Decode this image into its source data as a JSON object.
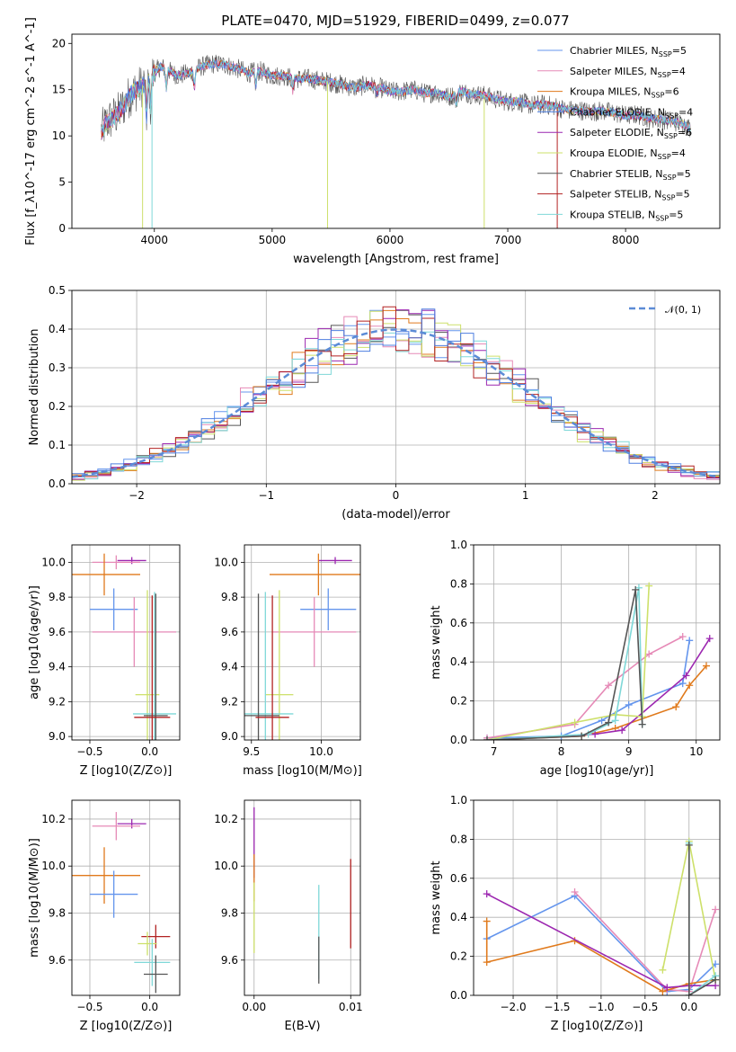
{
  "title": "PLATE=0470, MJD=51929, FIBERID=0499, z=0.077",
  "colors": [
    "#6495ed",
    "#e68ab7",
    "#e07a1c",
    "#4e7fe0",
    "#9c27b0",
    "#cde06a",
    "#555555",
    "#b22222",
    "#7fd8d8"
  ],
  "chart_data": [
    {
      "id": "spectrum",
      "type": "line",
      "xlabel": "wavelength [Angstrom, rest frame]",
      "ylabel": "Flux [f_λ10^-17 erg cm^-2 s^-1 A^-1]",
      "xlim": [
        3300,
        8800
      ],
      "ylim": [
        0,
        21
      ],
      "xticks": [
        4000,
        5000,
        6000,
        7000,
        8000
      ],
      "yticks": [
        0,
        5,
        10,
        15,
        20
      ],
      "grid": false,
      "legend": "top-right",
      "series": [
        {
          "name": "Chabrier MILES, N_SSP=5"
        },
        {
          "name": "Salpeter MILES, N_SSP=4"
        },
        {
          "name": "Kroupa MILES, N_SSP=6"
        },
        {
          "name": "Chabrier ELODIE, N_SSP=4"
        },
        {
          "name": "Salpeter ELODIE, N_SSP=6"
        },
        {
          "name": "Kroupa ELODIE, N_SSP=4"
        },
        {
          "name": "Chabrier STELIB, N_SSP=5"
        },
        {
          "name": "Salpeter STELIB, N_SSP=5"
        },
        {
          "name": "Kroupa STELIB, N_SSP=5"
        }
      ],
      "envelope_x": [
        3550,
        3600,
        3700,
        3750,
        3800,
        3850,
        3900,
        3950,
        4000,
        4050,
        4100,
        4200,
        4300,
        4400,
        4500,
        4600,
        4700,
        4800,
        4900,
        5000,
        5100,
        5200,
        5300,
        5400,
        5500,
        5600,
        5700,
        5800,
        5900,
        6000,
        6100,
        6200,
        6300,
        6400,
        6500,
        6600,
        6700,
        6800,
        6900,
        7000,
        7100,
        7200,
        7300,
        7400,
        7500,
        7600,
        7700,
        7800,
        7900,
        8000,
        8100,
        8200,
        8300,
        8400,
        8500,
        8550
      ],
      "envelope_y": [
        10.5,
        11.5,
        12.5,
        13.5,
        14.5,
        15,
        15.5,
        16,
        16.8,
        17.5,
        17.2,
        16.5,
        16.8,
        17.5,
        17.8,
        17.7,
        17.3,
        16.8,
        17,
        16.5,
        16.5,
        16.2,
        16.2,
        16,
        15.8,
        15.5,
        15.2,
        15.5,
        15.3,
        14.8,
        14.8,
        15,
        14.6,
        14.7,
        14.2,
        14.8,
        14.5,
        14.4,
        14,
        13.7,
        13.7,
        13.3,
        13.4,
        13.2,
        12.8,
        12.8,
        12.6,
        12.7,
        12.5,
        12.2,
        12.3,
        11.9,
        11.8,
        11.6,
        11.2,
        10.8
      ]
    },
    {
      "id": "residuals",
      "type": "line",
      "xlabel": "(data-model)/error",
      "ylabel": "Normed distribution",
      "xlim": [
        -2.5,
        2.5
      ],
      "ylim": [
        0,
        0.5
      ],
      "xticks": [
        -2,
        -1,
        0,
        1,
        2
      ],
      "yticks": [
        0.0,
        0.1,
        0.2,
        0.3,
        0.4,
        0.5
      ],
      "grid": true,
      "legend": "top-right",
      "reference": {
        "name": "𝒩(0, 1)",
        "mean": 0,
        "sigma": 1
      },
      "bin_width": 0.1
    },
    {
      "id": "age-vs-Z",
      "type": "scatter",
      "xlabel": "Z [log10(Z/Z⊙)]",
      "ylabel": "age  [log10(age/yr)]",
      "xlim": [
        -0.65,
        0.25
      ],
      "ylim": [
        8.98,
        10.1
      ],
      "xticks": [
        -0.5,
        0.0
      ],
      "yticks": [
        9.0,
        9.2,
        9.4,
        9.6,
        9.8,
        10.0
      ],
      "grid": true,
      "points": [
        {
          "x": -0.15,
          "y": 10.01,
          "xerr": 0.12,
          "yerr": 0.02,
          "c": 4
        },
        {
          "x": -0.28,
          "y": 10.0,
          "xerr": 0.2,
          "yerr": 0.04,
          "c": 1
        },
        {
          "x": -0.38,
          "y": 9.93,
          "xerr": 0.3,
          "yerr": 0.12,
          "c": 2
        },
        {
          "x": -0.3,
          "y": 9.73,
          "xerr": 0.2,
          "yerr": 0.12,
          "c": 0
        },
        {
          "x": -0.13,
          "y": 9.6,
          "xerr": 0.35,
          "yerr": 0.2,
          "c": 1
        },
        {
          "x": -0.02,
          "y": 9.24,
          "xerr": 0.1,
          "yerr": 0.6,
          "c": 5
        },
        {
          "x": 0.04,
          "y": 9.13,
          "xerr": 0.18,
          "yerr": 0.7,
          "c": 8
        },
        {
          "x": 0.05,
          "y": 9.12,
          "xerr": 0.1,
          "yerr": 0.7,
          "c": 6
        },
        {
          "x": 0.02,
          "y": 9.11,
          "xerr": 0.15,
          "yerr": 0.7,
          "c": 7
        }
      ]
    },
    {
      "id": "age-vs-mass",
      "type": "scatter",
      "xlabel": "mass [log10(M/M⊙)]",
      "ylabel": "",
      "xlim": [
        9.45,
        10.28
      ],
      "ylim": [
        8.98,
        10.1
      ],
      "xticks": [
        9.5,
        10.0
      ],
      "yticks": [
        9.0,
        9.2,
        9.4,
        9.6,
        9.8,
        10.0
      ],
      "grid": true,
      "points": [
        {
          "x": 10.1,
          "y": 10.01,
          "xerr": 0.12,
          "yerr": 0.02,
          "c": 4
        },
        {
          "x": 9.98,
          "y": 9.93,
          "xerr": 0.35,
          "yerr": 0.12,
          "c": 2
        },
        {
          "x": 10.05,
          "y": 9.73,
          "xerr": 0.2,
          "yerr": 0.12,
          "c": 0
        },
        {
          "x": 9.95,
          "y": 9.6,
          "xerr": 0.3,
          "yerr": 0.2,
          "c": 1
        },
        {
          "x": 9.7,
          "y": 9.24,
          "xerr": 0.1,
          "yerr": 0.6,
          "c": 5
        },
        {
          "x": 9.6,
          "y": 9.13,
          "xerr": 0.2,
          "yerr": 0.7,
          "c": 8
        },
        {
          "x": 9.55,
          "y": 9.12,
          "xerr": 0.15,
          "yerr": 0.7,
          "c": 6
        },
        {
          "x": 9.65,
          "y": 9.11,
          "xerr": 0.12,
          "yerr": 0.7,
          "c": 7
        }
      ]
    },
    {
      "id": "weight-vs-age",
      "type": "line",
      "xlabel": "age  [log10(age/yr)]",
      "ylabel": "mass weight",
      "xlim": [
        6.7,
        10.35
      ],
      "ylim": [
        0,
        1.0
      ],
      "xticks": [
        7,
        8,
        9,
        10
      ],
      "yticks": [
        0.0,
        0.2,
        0.4,
        0.6,
        0.8,
        1.0
      ],
      "grid": true,
      "series": [
        {
          "c": 0,
          "x": [
            6.9,
            8.0,
            8.6,
            9.0,
            9.8,
            9.9
          ],
          "y": [
            0.01,
            0.02,
            0.1,
            0.18,
            0.29,
            0.51
          ]
        },
        {
          "c": 1,
          "x": [
            6.9,
            8.2,
            8.7,
            9.3,
            9.8
          ],
          "y": [
            0.01,
            0.08,
            0.28,
            0.44,
            0.53
          ]
        },
        {
          "c": 2,
          "x": [
            6.9,
            8.3,
            8.8,
            9.7,
            9.9,
            10.15
          ],
          "y": [
            0.0,
            0.02,
            0.06,
            0.17,
            0.28,
            0.38
          ]
        },
        {
          "c": 4,
          "x": [
            6.9,
            8.5,
            8.9,
            9.85,
            10.2
          ],
          "y": [
            0.0,
            0.03,
            0.05,
            0.33,
            0.52
          ]
        },
        {
          "c": 5,
          "x": [
            6.9,
            8.2,
            8.8,
            9.2,
            9.3
          ],
          "y": [
            0.0,
            0.09,
            0.13,
            0.12,
            0.79
          ]
        },
        {
          "c": 8,
          "x": [
            6.9,
            8.4,
            8.8,
            9.15,
            9.2
          ],
          "y": [
            0.0,
            0.03,
            0.1,
            0.78,
            0.08
          ]
        },
        {
          "c": 6,
          "x": [
            6.9,
            8.3,
            8.7,
            9.1,
            9.2
          ],
          "y": [
            0.0,
            0.02,
            0.09,
            0.77,
            0.08
          ]
        }
      ]
    },
    {
      "id": "mass-vs-Z",
      "type": "scatter",
      "xlabel": "Z [log10(Z/Z⊙)]",
      "ylabel": "mass [log10(M/M⊙)]",
      "xlim": [
        -0.65,
        0.25
      ],
      "ylim": [
        9.45,
        10.28
      ],
      "xticks": [
        -0.5,
        0.0
      ],
      "yticks": [
        9.6,
        9.8,
        10.0,
        10.2
      ],
      "grid": true,
      "points": [
        {
          "x": -0.15,
          "y": 10.18,
          "xerr": 0.12,
          "yerr": 0.02,
          "c": 4
        },
        {
          "x": -0.28,
          "y": 10.17,
          "xerr": 0.2,
          "yerr": 0.06,
          "c": 1
        },
        {
          "x": -0.38,
          "y": 9.96,
          "xerr": 0.3,
          "yerr": 0.12,
          "c": 2
        },
        {
          "x": -0.3,
          "y": 9.88,
          "xerr": 0.2,
          "yerr": 0.1,
          "c": 0
        },
        {
          "x": 0.05,
          "y": 9.7,
          "xerr": 0.12,
          "yerr": 0.05,
          "c": 7
        },
        {
          "x": -0.02,
          "y": 9.67,
          "xerr": 0.08,
          "yerr": 0.05,
          "c": 5
        },
        {
          "x": 0.02,
          "y": 9.59,
          "xerr": 0.15,
          "yerr": 0.1,
          "c": 8
        },
        {
          "x": 0.05,
          "y": 9.54,
          "xerr": 0.1,
          "yerr": 0.08,
          "c": 6
        }
      ]
    },
    {
      "id": "mass-vs-ebv",
      "type": "scatter",
      "xlabel": "E(B-V)",
      "ylabel": "",
      "xlim": [
        -0.001,
        0.011
      ],
      "ylim": [
        9.45,
        10.28
      ],
      "xticks": [
        0.0,
        0.01
      ],
      "yticks": [
        9.6,
        9.8,
        10.0,
        10.2
      ],
      "grid": true,
      "points": [
        {
          "x": 0.0,
          "y": 10.1,
          "xerr": 0,
          "yerr": 0.15,
          "c": 4
        },
        {
          "x": 0.0,
          "y": 9.95,
          "xerr": 0,
          "yerr": 0.1,
          "c": 2
        },
        {
          "x": 0.0,
          "y": 9.78,
          "xerr": 0,
          "yerr": 0.15,
          "c": 5
        },
        {
          "x": 0.0067,
          "y": 9.72,
          "xerr": 0,
          "yerr": 0.2,
          "c": 8
        },
        {
          "x": 0.0067,
          "y": 9.6,
          "xerr": 0,
          "yerr": 0.1,
          "c": 6
        },
        {
          "x": 0.01,
          "y": 9.84,
          "xerr": 0,
          "yerr": 0.19,
          "c": 7
        }
      ]
    },
    {
      "id": "weight-vs-Z",
      "type": "line",
      "xlabel": "Z [log10(Z/Z⊙)]",
      "ylabel": "mass weight",
      "xlim": [
        -2.45,
        0.35
      ],
      "ylim": [
        0,
        1.0
      ],
      "xticks": [
        -2.0,
        -1.5,
        -1.0,
        -0.5,
        0.0
      ],
      "yticks": [
        0.0,
        0.2,
        0.4,
        0.6,
        0.8,
        1.0
      ],
      "grid": true,
      "series": [
        {
          "c": 0,
          "x": [
            -2.3,
            -1.3,
            -0.25,
            0.0,
            0.3
          ],
          "y": [
            0.29,
            0.51,
            0.02,
            0.03,
            0.16
          ]
        },
        {
          "c": 1,
          "x": [
            -1.3,
            -0.25,
            0.0,
            0.3
          ],
          "y": [
            0.53,
            0.03,
            0.02,
            0.44
          ]
        },
        {
          "c": 2,
          "x": [
            -2.3,
            -2.3,
            -1.3,
            -0.3,
            0.0,
            0.3
          ],
          "y": [
            0.38,
            0.17,
            0.28,
            0.02,
            0.06,
            0.08
          ]
        },
        {
          "c": 4,
          "x": [
            -2.3,
            -0.25,
            0.0,
            0.3
          ],
          "y": [
            0.52,
            0.04,
            0.05,
            0.05
          ]
        },
        {
          "c": 5,
          "x": [
            -0.3,
            0.0,
            0.3
          ],
          "y": [
            0.13,
            0.79,
            0.08
          ]
        },
        {
          "c": 8,
          "x": [
            0.0,
            0.0,
            0.3
          ],
          "y": [
            0.78,
            0.0,
            0.1
          ]
        },
        {
          "c": 6,
          "x": [
            0.0,
            0.0,
            0.3
          ],
          "y": [
            0.77,
            0.0,
            0.08
          ]
        }
      ]
    }
  ]
}
